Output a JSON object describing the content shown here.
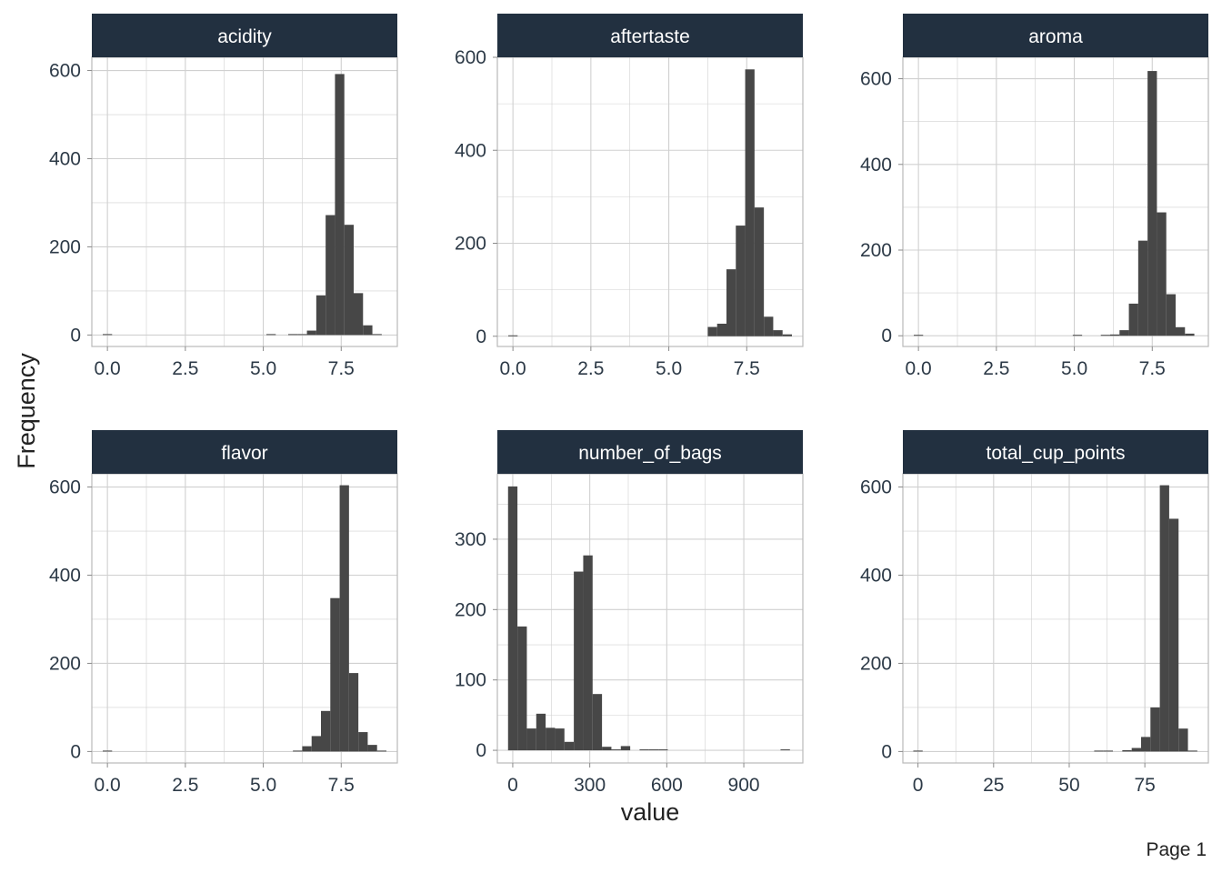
{
  "chart_data": {
    "type": "bar",
    "xlabel": "value",
    "ylabel": "Frequency",
    "page_label": "Page 1",
    "colors": {
      "bar": "#474747",
      "strip": "#223040",
      "grid": "#d0d0d0",
      "panel_border": "#b9b9b9",
      "text": "#2d3a47"
    },
    "grid": true,
    "panels": [
      {
        "name": "acidity",
        "xlim": [
          -0.5,
          9.3
        ],
        "ylim": [
          -26,
          630
        ],
        "xticks": [
          0,
          2.5,
          5,
          7.5
        ],
        "xtick_labels": [
          "0.0",
          "2.5",
          "5.0",
          "7.5"
        ],
        "yticks": [
          0,
          200,
          400,
          600
        ],
        "bin_width": 0.3,
        "bins": [
          {
            "x": 0.0,
            "count": 1
          },
          {
            "x": 5.25,
            "count": 1
          },
          {
            "x": 5.95,
            "count": 1
          },
          {
            "x": 6.25,
            "count": 2
          },
          {
            "x": 6.55,
            "count": 10
          },
          {
            "x": 6.85,
            "count": 90
          },
          {
            "x": 7.15,
            "count": 272
          },
          {
            "x": 7.45,
            "count": 592
          },
          {
            "x": 7.75,
            "count": 250
          },
          {
            "x": 8.05,
            "count": 95
          },
          {
            "x": 8.35,
            "count": 22
          },
          {
            "x": 8.65,
            "count": 2
          }
        ]
      },
      {
        "name": "aftertaste",
        "xlim": [
          -0.5,
          9.3
        ],
        "ylim": [
          -22,
          600
        ],
        "xticks": [
          0,
          2.5,
          5,
          7.5
        ],
        "xtick_labels": [
          "0.0",
          "2.5",
          "5.0",
          "7.5"
        ],
        "yticks": [
          0,
          200,
          400,
          600
        ],
        "bin_width": 0.3,
        "bins": [
          {
            "x": 0.0,
            "count": 1
          },
          {
            "x": 6.4,
            "count": 20
          },
          {
            "x": 6.7,
            "count": 27
          },
          {
            "x": 7.0,
            "count": 144
          },
          {
            "x": 7.3,
            "count": 238
          },
          {
            "x": 7.6,
            "count": 574
          },
          {
            "x": 7.9,
            "count": 277
          },
          {
            "x": 8.2,
            "count": 42
          },
          {
            "x": 8.5,
            "count": 13
          },
          {
            "x": 8.8,
            "count": 4
          }
        ]
      },
      {
        "name": "aroma",
        "xlim": [
          -0.5,
          9.3
        ],
        "ylim": [
          -25,
          650
        ],
        "xticks": [
          0,
          2.5,
          5,
          7.5
        ],
        "xtick_labels": [
          "0.0",
          "2.5",
          "5.0",
          "7.5"
        ],
        "yticks": [
          0,
          200,
          400,
          600
        ],
        "bin_width": 0.3,
        "bins": [
          {
            "x": 0.0,
            "count": 1
          },
          {
            "x": 5.1,
            "count": 1
          },
          {
            "x": 6.0,
            "count": 2
          },
          {
            "x": 6.3,
            "count": 3
          },
          {
            "x": 6.6,
            "count": 13
          },
          {
            "x": 6.9,
            "count": 75
          },
          {
            "x": 7.2,
            "count": 222
          },
          {
            "x": 7.5,
            "count": 618
          },
          {
            "x": 7.8,
            "count": 288
          },
          {
            "x": 8.1,
            "count": 97
          },
          {
            "x": 8.4,
            "count": 20
          },
          {
            "x": 8.7,
            "count": 5
          }
        ]
      },
      {
        "name": "flavor",
        "xlim": [
          -0.5,
          9.3
        ],
        "ylim": [
          -26,
          630
        ],
        "xticks": [
          0,
          2.5,
          5,
          7.5
        ],
        "xtick_labels": [
          "0.0",
          "2.5",
          "5.0",
          "7.5"
        ],
        "yticks": [
          0,
          200,
          400,
          600
        ],
        "bin_width": 0.3,
        "bins": [
          {
            "x": 0.0,
            "count": 1
          },
          {
            "x": 6.1,
            "count": 2
          },
          {
            "x": 6.4,
            "count": 12
          },
          {
            "x": 6.7,
            "count": 35
          },
          {
            "x": 7.0,
            "count": 92
          },
          {
            "x": 7.3,
            "count": 348
          },
          {
            "x": 7.6,
            "count": 604
          },
          {
            "x": 7.9,
            "count": 178
          },
          {
            "x": 8.2,
            "count": 44
          },
          {
            "x": 8.5,
            "count": 15
          },
          {
            "x": 8.8,
            "count": 2
          }
        ]
      },
      {
        "name": "number_of_bags",
        "xlim": [
          -60,
          1130
        ],
        "ylim": [
          -18,
          393
        ],
        "xticks": [
          0,
          300,
          600,
          900
        ],
        "xtick_labels": [
          "0",
          "300",
          "600",
          "900"
        ],
        "yticks": [
          0,
          100,
          200,
          300
        ],
        "bin_width": 36.6,
        "bins": [
          {
            "x": 0,
            "count": 375
          },
          {
            "x": 36.6,
            "count": 176
          },
          {
            "x": 73.2,
            "count": 31
          },
          {
            "x": 109.8,
            "count": 52
          },
          {
            "x": 146.4,
            "count": 32
          },
          {
            "x": 183,
            "count": 31
          },
          {
            "x": 219.6,
            "count": 12
          },
          {
            "x": 256.2,
            "count": 254
          },
          {
            "x": 292.8,
            "count": 277
          },
          {
            "x": 329.4,
            "count": 80
          },
          {
            "x": 366,
            "count": 5
          },
          {
            "x": 402.6,
            "count": 1
          },
          {
            "x": 439.2,
            "count": 6
          },
          {
            "x": 512.4,
            "count": 1
          },
          {
            "x": 549,
            "count": 1
          },
          {
            "x": 585.6,
            "count": 1
          },
          {
            "x": 1061.4,
            "count": 1
          }
        ]
      },
      {
        "name": "total_cup_points",
        "xlim": [
          -5,
          96
        ],
        "ylim": [
          -26,
          630
        ],
        "xticks": [
          0,
          25,
          50,
          75
        ],
        "xtick_labels": [
          "0",
          "25",
          "50",
          "75"
        ],
        "yticks": [
          0,
          200,
          400,
          600
        ],
        "bin_width": 3.1,
        "bins": [
          {
            "x": 0,
            "count": 1
          },
          {
            "x": 59.8,
            "count": 1
          },
          {
            "x": 62.9,
            "count": 1
          },
          {
            "x": 69.1,
            "count": 3
          },
          {
            "x": 72.2,
            "count": 8
          },
          {
            "x": 75.3,
            "count": 33
          },
          {
            "x": 78.4,
            "count": 100
          },
          {
            "x": 81.5,
            "count": 604
          },
          {
            "x": 84.6,
            "count": 528
          },
          {
            "x": 87.7,
            "count": 52
          },
          {
            "x": 90.8,
            "count": 2
          }
        ]
      }
    ]
  }
}
